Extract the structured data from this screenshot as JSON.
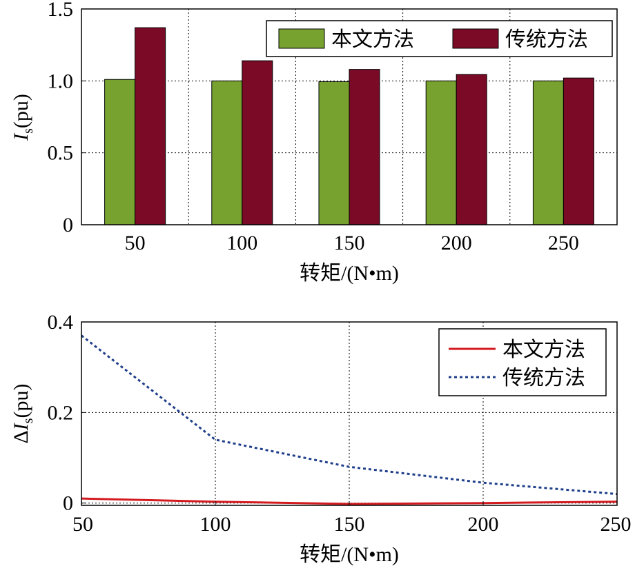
{
  "chart_data": [
    {
      "type": "bar",
      "categories": [
        "50",
        "100",
        "150",
        "200",
        "250"
      ],
      "series": [
        {
          "name": "本文方法",
          "values": [
            1.01,
            1.0,
            0.995,
            1.0,
            1.0
          ],
          "color": "#77a230"
        },
        {
          "name": "传统方法",
          "values": [
            1.37,
            1.14,
            1.08,
            1.045,
            1.02
          ],
          "color": "#7b0a27"
        }
      ],
      "xlabel": "转矩/(N•m)",
      "ylabel": {
        "main": "I",
        "sub": "s",
        "unit": "(pu)"
      },
      "ylim": [
        0,
        1.5
      ],
      "yticks": [
        "0",
        "0.5",
        "1.0",
        "1.5"
      ],
      "grid": true,
      "legend": "top-right, horizontal"
    },
    {
      "type": "line",
      "x": [
        50,
        100,
        150,
        200,
        250
      ],
      "series": [
        {
          "name": "本文方法",
          "values": [
            0.01,
            0.003,
            -0.002,
            0.0,
            0.003
          ],
          "color": "#d31a1f",
          "style": "solid"
        },
        {
          "name": "传统方法",
          "values": [
            0.37,
            0.14,
            0.08,
            0.045,
            0.02
          ],
          "color": "#1f3f8a",
          "style": "dotted"
        }
      ],
      "xlabel": "转矩/(N•m)",
      "ylabel": {
        "prefix": "Δ",
        "main": "I",
        "sub": "s",
        "unit": "(pu)"
      },
      "xlim": [
        50,
        250
      ],
      "ylim": [
        -0.005,
        0.4
      ],
      "xticks": [
        "50",
        "100",
        "150",
        "200",
        "250"
      ],
      "yticks": [
        "0",
        "0.2",
        "0.4"
      ],
      "grid": true,
      "legend": "top-right"
    }
  ]
}
